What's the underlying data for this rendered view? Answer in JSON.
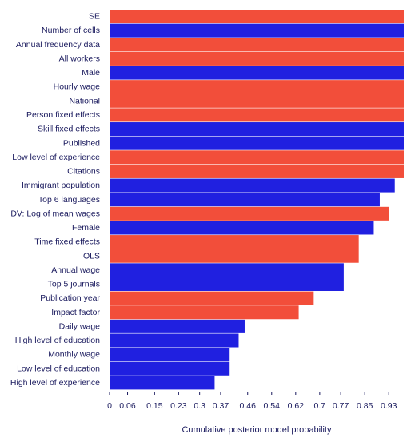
{
  "chart_data": {
    "type": "inclusion",
    "x_label": "Cumulative posterior model probability",
    "categories": [
      "SE",
      "Number of cells",
      "Annual frequency data",
      "All workers",
      "Male",
      "Hourly wage",
      "National",
      "Person fixed effects",
      "Skill fixed effects",
      "Published",
      "Low level of experience",
      "Citations",
      "Immigrant population",
      "Top 6 languages",
      "DV: Log of mean wages",
      "Female",
      "Time fixed effects",
      "OLS",
      "Annual wage",
      "Top 5 journals",
      "Publication year",
      "Impact factor",
      "Daily wage",
      "High level of education",
      "Monthly wage",
      "Low level of education",
      "High level of experience"
    ],
    "values": [
      0.98,
      0.98,
      0.98,
      0.98,
      0.98,
      0.98,
      0.98,
      0.98,
      0.98,
      0.98,
      0.98,
      0.98,
      0.95,
      0.9,
      0.93,
      0.88,
      0.83,
      0.83,
      0.78,
      0.78,
      0.68,
      0.63,
      0.45,
      0.43,
      0.4,
      0.4,
      0.35
    ],
    "colors": [
      "#f24e3a",
      "#2020e0",
      "#f24e3a",
      "#f24e3a",
      "#2020e0",
      "#f24e3a",
      "#f24e3a",
      "#f24e3a",
      "#2020e0",
      "#2020e0",
      "#f24e3a",
      "#f24e3a",
      "#2020e0",
      "#2020e0",
      "#f24e3a",
      "#2020e0",
      "#f24e3a",
      "#f24e3a",
      "#2020e0",
      "#2020e0",
      "#f24e3a",
      "#f24e3a",
      "#2020e0",
      "#2020e0",
      "#2020e0",
      "#2020e0",
      "#2020e0"
    ],
    "xlim": [
      0,
      0.98
    ],
    "xticks": [
      0,
      0.06,
      0.15,
      0.23,
      0.3,
      0.37,
      0.46,
      0.54,
      0.62,
      0.7,
      0.77,
      0.85,
      0.93
    ]
  }
}
